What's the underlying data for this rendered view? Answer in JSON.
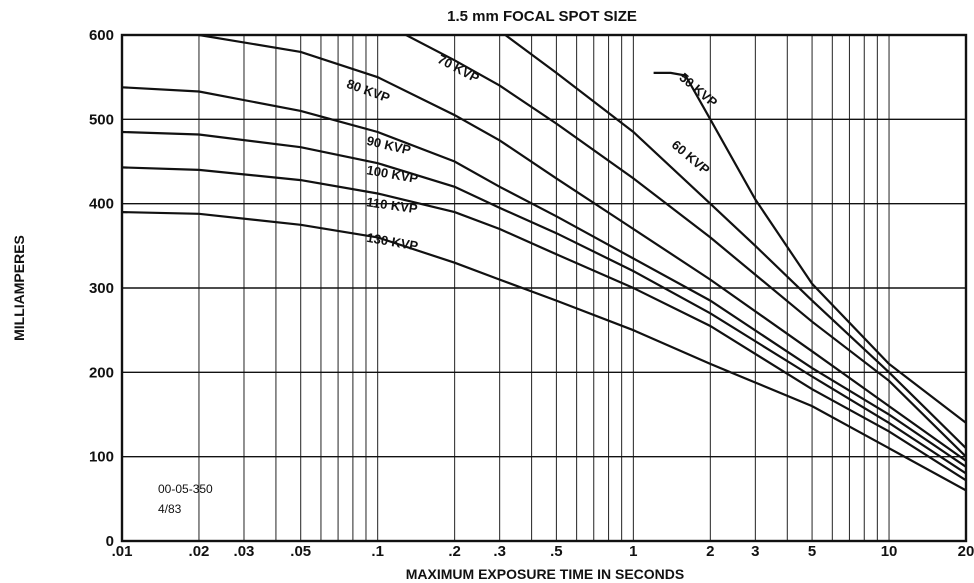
{
  "chart_data": {
    "type": "line",
    "title": "1.5 mm FOCAL SPOT SIZE",
    "xlabel": "MAXIMUM EXPOSURE TIME IN SECONDS",
    "ylabel": "MILLIAMPERES",
    "xscale": "log",
    "xlim": [
      0.01,
      20
    ],
    "ylim": [
      0,
      600
    ],
    "x_ticks": [
      {
        "value": 0.01,
        "label": ".01"
      },
      {
        "value": 0.02,
        "label": ".02"
      },
      {
        "value": 0.03,
        "label": ".03"
      },
      {
        "value": 0.05,
        "label": ".05"
      },
      {
        "value": 0.1,
        "label": ".1"
      },
      {
        "value": 0.2,
        "label": ".2"
      },
      {
        "value": 0.3,
        "label": ".3"
      },
      {
        "value": 0.5,
        "label": ".5"
      },
      {
        "value": 1,
        "label": "1"
      },
      {
        "value": 2,
        "label": "2"
      },
      {
        "value": 3,
        "label": "3"
      },
      {
        "value": 5,
        "label": "5"
      },
      {
        "value": 10,
        "label": "10"
      },
      {
        "value": 20,
        "label": "20"
      }
    ],
    "y_ticks": [
      {
        "value": 0,
        "label": "0"
      },
      {
        "value": 100,
        "label": "100"
      },
      {
        "value": 200,
        "label": "200"
      },
      {
        "value": 300,
        "label": "300"
      },
      {
        "value": 400,
        "label": "400"
      },
      {
        "value": 500,
        "label": "500"
      },
      {
        "value": 600,
        "label": "600"
      }
    ],
    "grid": true,
    "series": [
      {
        "name": "50 KVP",
        "label_at": [
          1.5,
          548
        ],
        "label_angle": 40,
        "x": [
          1.2,
          1.4,
          1.6,
          2,
          3,
          5,
          10,
          20
        ],
        "y": [
          555,
          555,
          552,
          500,
          405,
          305,
          210,
          140
        ]
      },
      {
        "name": "60 KVP",
        "label_at": [
          1.4,
          468
        ],
        "label_angle": 40,
        "x": [
          0.3,
          0.5,
          1,
          2,
          3,
          5,
          10,
          20
        ],
        "y": [
          605,
          555,
          485,
          400,
          350,
          285,
          200,
          110
        ]
      },
      {
        "name": "70 KVP",
        "label_at": [
          0.17,
          568
        ],
        "label_angle": 28,
        "x": [
          0.12,
          0.2,
          0.3,
          0.5,
          1,
          2,
          5,
          10,
          20
        ],
        "y": [
          605,
          570,
          540,
          495,
          430,
          360,
          260,
          190,
          100
        ]
      },
      {
        "name": "80 KVP",
        "label_at": [
          0.075,
          538
        ],
        "label_angle": 20,
        "x": [
          0.02,
          0.05,
          0.1,
          0.2,
          0.3,
          0.5,
          1,
          2,
          5,
          10,
          20
        ],
        "y": [
          600,
          580,
          550,
          505,
          475,
          430,
          370,
          310,
          225,
          160,
          95
        ]
      },
      {
        "name": "90 KVP",
        "label_at": [
          0.09,
          470
        ],
        "label_angle": 13,
        "x": [
          0.01,
          0.02,
          0.05,
          0.1,
          0.2,
          0.3,
          0.5,
          1,
          2,
          5,
          10,
          20
        ],
        "y": [
          538,
          533,
          510,
          485,
          450,
          420,
          385,
          335,
          285,
          205,
          150,
          88
        ]
      },
      {
        "name": "100 KVP",
        "label_at": [
          0.09,
          435
        ],
        "label_angle": 10,
        "x": [
          0.01,
          0.02,
          0.05,
          0.1,
          0.2,
          0.3,
          0.5,
          1,
          2,
          5,
          10,
          20
        ],
        "y": [
          485,
          482,
          467,
          448,
          420,
          395,
          365,
          320,
          270,
          195,
          140,
          80
        ]
      },
      {
        "name": "110 KVP",
        "label_at": [
          0.09,
          397
        ],
        "label_angle": 8,
        "x": [
          0.01,
          0.02,
          0.05,
          0.1,
          0.2,
          0.3,
          0.5,
          1,
          2,
          5,
          10,
          20
        ],
        "y": [
          443,
          440,
          428,
          412,
          390,
          370,
          340,
          300,
          255,
          180,
          130,
          72
        ]
      },
      {
        "name": "130 KVP",
        "label_at": [
          0.09,
          355
        ],
        "label_angle": 10,
        "x": [
          0.01,
          0.02,
          0.05,
          0.1,
          0.2,
          0.3,
          0.5,
          1,
          2,
          5,
          10,
          20
        ],
        "y": [
          390,
          388,
          375,
          360,
          330,
          310,
          285,
          250,
          210,
          160,
          110,
          60
        ]
      }
    ],
    "annotations": [
      "00-05-350",
      "4/83"
    ]
  }
}
